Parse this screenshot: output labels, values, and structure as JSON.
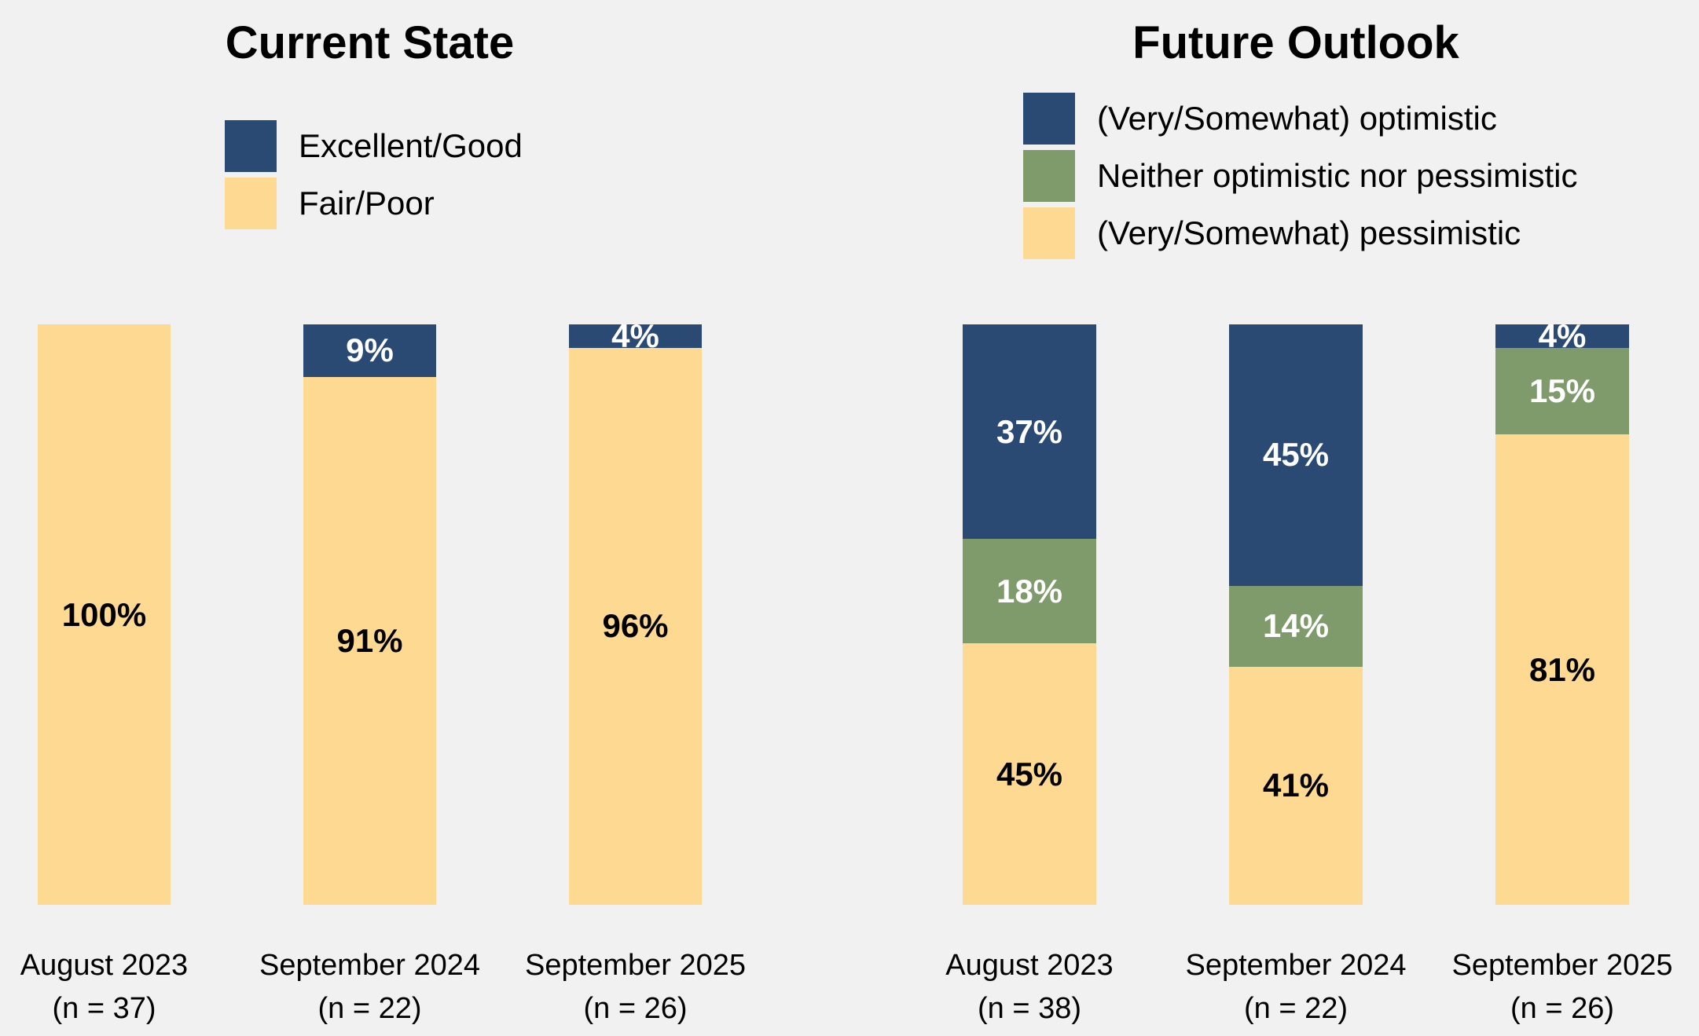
{
  "page": {
    "background_color": "#f1f1f1",
    "text_color": "#000000"
  },
  "chart_data": [
    {
      "type": "bar",
      "subtype": "stacked-vertical-100pct",
      "title": "Current State",
      "value_suffix": "%",
      "ylim": [
        0,
        100
      ],
      "grid": false,
      "axes_visible": false,
      "legend_position": "top-left",
      "categories": [
        {
          "label": "August 2023",
          "sublabel": "(n = 37)"
        },
        {
          "label": "September 2024",
          "sublabel": "(n = 22)"
        },
        {
          "label": "September 2025",
          "sublabel": "(n = 26)"
        }
      ],
      "series": [
        {
          "name": "Excellent/Good",
          "color": "#2a4a73",
          "label_color": "#ffffff",
          "values": [
            0,
            9,
            4
          ]
        },
        {
          "name": "Fair/Poor",
          "color": "#fdd992",
          "label_color": "#000000",
          "values": [
            100,
            91,
            96
          ]
        }
      ]
    },
    {
      "type": "bar",
      "subtype": "stacked-vertical-100pct",
      "title": "Future Outlook",
      "value_suffix": "%",
      "ylim": [
        0,
        100
      ],
      "grid": false,
      "axes_visible": false,
      "legend_position": "top-left",
      "categories": [
        {
          "label": "August 2023",
          "sublabel": "(n = 38)"
        },
        {
          "label": "September 2024",
          "sublabel": "(n = 22)"
        },
        {
          "label": "September 2025",
          "sublabel": "(n = 26)"
        }
      ],
      "series": [
        {
          "name": "(Very/Somewhat) optimistic",
          "color": "#2a4a73",
          "label_color": "#ffffff",
          "values": [
            37,
            45,
            4
          ]
        },
        {
          "name": "Neither optimistic nor pessimistic",
          "color": "#7f9a6b",
          "label_color": "#ffffff",
          "values": [
            18,
            14,
            15
          ]
        },
        {
          "name": "(Very/Somewhat) pessimistic",
          "color": "#fdd992",
          "label_color": "#000000",
          "values": [
            45,
            41,
            81
          ]
        }
      ]
    }
  ]
}
